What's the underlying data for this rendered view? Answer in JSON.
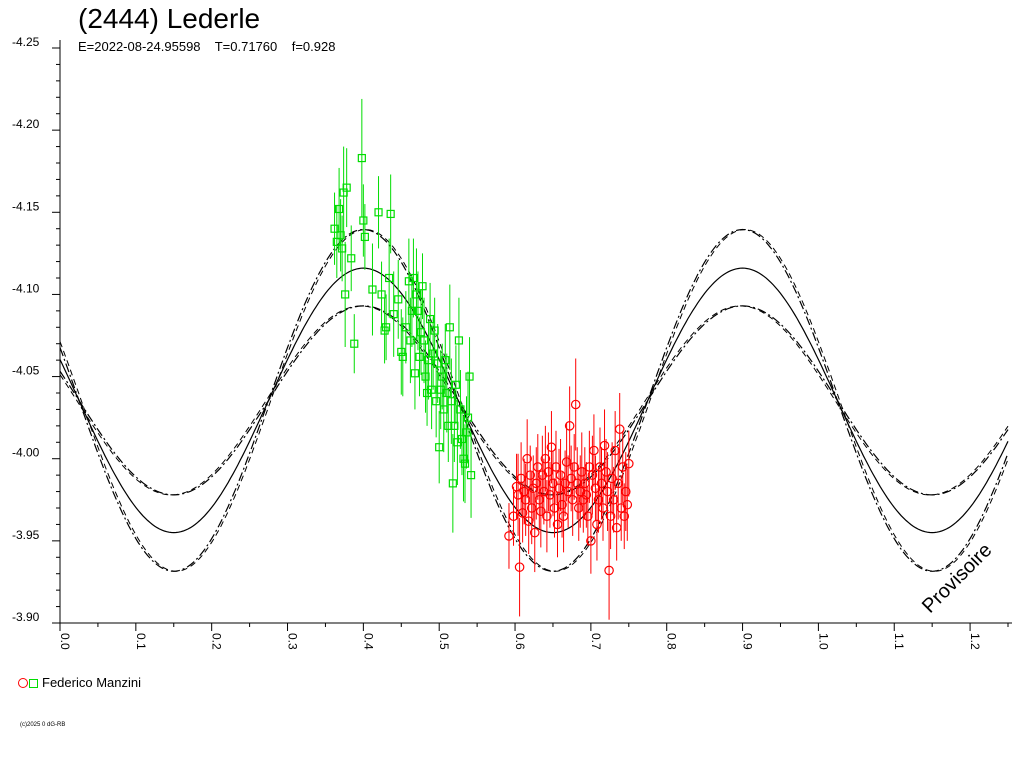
{
  "chart_data": {
    "type": "scatter",
    "title": "(2444) Lederle",
    "subtitle": "E=2022-08-24.95598    T=0.71760    f=0.928",
    "xlabel": "",
    "ylabel": "",
    "xlim": [
      0.0,
      1.25
    ],
    "ylim": [
      -4.25,
      -3.9
    ],
    "y_inverted": true,
    "x_ticks": [
      "0.0",
      "0.1",
      "0.2",
      "0.3",
      "0.4",
      "0.5",
      "0.6",
      "0.7",
      "0.8",
      "0.9",
      "1.0",
      "1.1",
      "1.2"
    ],
    "y_ticks": [
      "-4.25",
      "-4.20",
      "-4.15",
      "-4.10",
      "-4.05",
      "-4.00",
      "-3.95",
      "-3.90"
    ],
    "watermark": "Provisoire",
    "model_curves": {
      "center": -4.0355,
      "amplitude_mid": 0.0805,
      "amplitude_outer": 0.104,
      "amplitude_inner": 0.0575,
      "max_phase": 0.4,
      "period_phase": 0.5
    },
    "series": [
      {
        "name": "Federico Manzini",
        "marker": "square",
        "color": "#00dd00",
        "points": [
          [
            0.362,
            -4.14,
            0.022
          ],
          [
            0.365,
            -4.132,
            0.022
          ],
          [
            0.368,
            -4.152,
            0.025
          ],
          [
            0.37,
            -4.136,
            0.022
          ],
          [
            0.372,
            -4.128,
            0.02
          ],
          [
            0.374,
            -4.162,
            0.028
          ],
          [
            0.376,
            -4.1,
            0.032
          ],
          [
            0.378,
            -4.165,
            0.024
          ],
          [
            0.384,
            -4.122,
            0.02
          ],
          [
            0.388,
            -4.07,
            0.018
          ],
          [
            0.398,
            -4.183,
            0.036
          ],
          [
            0.4,
            -4.145,
            0.022
          ],
          [
            0.402,
            -4.135,
            0.02
          ],
          [
            0.412,
            -4.103,
            0.028
          ],
          [
            0.42,
            -4.15,
            0.022
          ],
          [
            0.424,
            -4.1,
            0.02
          ],
          [
            0.428,
            -4.078,
            0.02
          ],
          [
            0.43,
            -4.08,
            0.02
          ],
          [
            0.434,
            -4.11,
            0.024
          ],
          [
            0.436,
            -4.149,
            0.024
          ],
          [
            0.44,
            -4.088,
            0.026
          ],
          [
            0.446,
            -4.097,
            0.024
          ],
          [
            0.45,
            -4.065,
            0.026
          ],
          [
            0.452,
            -4.062,
            0.024
          ],
          [
            0.456,
            -4.08,
            0.022
          ],
          [
            0.46,
            -4.108,
            0.026
          ],
          [
            0.462,
            -4.072,
            0.026
          ],
          [
            0.464,
            -4.09,
            0.022
          ],
          [
            0.466,
            -4.11,
            0.024
          ],
          [
            0.468,
            -4.052,
            0.022
          ],
          [
            0.47,
            -4.1,
            0.028
          ],
          [
            0.472,
            -4.09,
            0.024
          ],
          [
            0.474,
            -4.062,
            0.024
          ],
          [
            0.476,
            -4.077,
            0.026
          ],
          [
            0.478,
            -4.105,
            0.02
          ],
          [
            0.48,
            -4.072,
            0.026
          ],
          [
            0.482,
            -4.05,
            0.022
          ],
          [
            0.484,
            -4.04,
            0.02
          ],
          [
            0.486,
            -4.06,
            0.024
          ],
          [
            0.488,
            -4.085,
            0.022
          ],
          [
            0.49,
            -4.042,
            0.024
          ],
          [
            0.492,
            -4.064,
            0.022
          ],
          [
            0.494,
            -4.078,
            0.02
          ],
          [
            0.496,
            -4.035,
            0.022
          ],
          [
            0.498,
            -4.058,
            0.024
          ],
          [
            0.5,
            -4.007,
            0.022
          ],
          [
            0.502,
            -4.042,
            0.024
          ],
          [
            0.504,
            -4.05,
            0.02
          ],
          [
            0.506,
            -4.03,
            0.026
          ],
          [
            0.508,
            -4.06,
            0.022
          ],
          [
            0.51,
            -4.04,
            0.024
          ],
          [
            0.512,
            -4.02,
            0.022
          ],
          [
            0.514,
            -4.08,
            0.026
          ],
          [
            0.516,
            -4.035,
            0.026
          ],
          [
            0.518,
            -3.985,
            0.03
          ],
          [
            0.52,
            -4.02,
            0.022
          ],
          [
            0.522,
            -4.045,
            0.024
          ],
          [
            0.524,
            -4.01,
            0.026
          ],
          [
            0.526,
            -4.072,
            0.026
          ],
          [
            0.528,
            -4.03,
            0.024
          ],
          [
            0.53,
            -4.012,
            0.022
          ],
          [
            0.532,
            -4.0,
            0.026
          ],
          [
            0.534,
            -3.997,
            0.024
          ],
          [
            0.536,
            -4.016,
            0.022
          ],
          [
            0.538,
            -4.025,
            0.028
          ],
          [
            0.54,
            -4.05,
            0.024
          ],
          [
            0.542,
            -3.99,
            0.026
          ]
        ]
      },
      {
        "name": "Federico Manzini",
        "marker": "circle",
        "color": "#ff0000",
        "points": [
          [
            0.592,
            -3.953,
            0.02
          ],
          [
            0.598,
            -3.965,
            0.018
          ],
          [
            0.602,
            -3.983,
            0.02
          ],
          [
            0.604,
            -3.978,
            0.025
          ],
          [
            0.606,
            -3.934,
            0.03
          ],
          [
            0.608,
            -3.988,
            0.022
          ],
          [
            0.61,
            -3.967,
            0.018
          ],
          [
            0.612,
            -3.98,
            0.02
          ],
          [
            0.614,
            -3.975,
            0.022
          ],
          [
            0.616,
            -4.0,
            0.024
          ],
          [
            0.618,
            -3.962,
            0.02
          ],
          [
            0.62,
            -3.99,
            0.018
          ],
          [
            0.622,
            -3.97,
            0.022
          ],
          [
            0.624,
            -3.982,
            0.02
          ],
          [
            0.626,
            -3.955,
            0.024
          ],
          [
            0.628,
            -3.985,
            0.022
          ],
          [
            0.63,
            -3.995,
            0.02
          ],
          [
            0.632,
            -3.975,
            0.018
          ],
          [
            0.634,
            -3.968,
            0.022
          ],
          [
            0.636,
            -3.99,
            0.024
          ],
          [
            0.638,
            -3.98,
            0.02
          ],
          [
            0.64,
            -4.0,
            0.02
          ],
          [
            0.642,
            -3.965,
            0.022
          ],
          [
            0.644,
            -3.992,
            0.024
          ],
          [
            0.646,
            -3.978,
            0.02
          ],
          [
            0.648,
            -4.007,
            0.022
          ],
          [
            0.65,
            -3.985,
            0.02
          ],
          [
            0.652,
            -3.97,
            0.018
          ],
          [
            0.654,
            -3.995,
            0.022
          ],
          [
            0.656,
            -3.96,
            0.02
          ],
          [
            0.658,
            -3.982,
            0.024
          ],
          [
            0.66,
            -3.99,
            0.022
          ],
          [
            0.662,
            -3.972,
            0.02
          ],
          [
            0.664,
            -3.965,
            0.022
          ],
          [
            0.666,
            -3.985,
            0.02
          ],
          [
            0.668,
            -3.998,
            0.024
          ],
          [
            0.67,
            -3.98,
            0.022
          ],
          [
            0.672,
            -4.02,
            0.024
          ],
          [
            0.674,
            -3.988,
            0.02
          ],
          [
            0.676,
            -3.975,
            0.022
          ],
          [
            0.678,
            -3.995,
            0.02
          ],
          [
            0.68,
            -4.033,
            0.028
          ],
          [
            0.682,
            -3.985,
            0.022
          ],
          [
            0.684,
            -3.97,
            0.02
          ],
          [
            0.686,
            -3.98,
            0.022
          ],
          [
            0.688,
            -3.992,
            0.024
          ],
          [
            0.69,
            -3.975,
            0.02
          ],
          [
            0.692,
            -3.985,
            0.022
          ],
          [
            0.694,
            -3.978,
            0.02
          ],
          [
            0.696,
            -3.965,
            0.018
          ],
          [
            0.698,
            -3.995,
            0.022
          ],
          [
            0.7,
            -3.95,
            0.02
          ],
          [
            0.702,
            -3.99,
            0.024
          ],
          [
            0.704,
            -4.005,
            0.022
          ],
          [
            0.706,
            -3.982,
            0.02
          ],
          [
            0.708,
            -3.96,
            0.022
          ],
          [
            0.71,
            -3.975,
            0.02
          ],
          [
            0.712,
            -3.995,
            0.024
          ],
          [
            0.714,
            -3.985,
            0.022
          ],
          [
            0.716,
            -3.97,
            0.02
          ],
          [
            0.718,
            -4.008,
            0.022
          ],
          [
            0.72,
            -3.992,
            0.02
          ],
          [
            0.722,
            -3.98,
            0.024
          ],
          [
            0.724,
            -3.932,
            0.03
          ],
          [
            0.726,
            -3.965,
            0.02
          ],
          [
            0.728,
            -3.988,
            0.022
          ],
          [
            0.73,
            -3.975,
            0.02
          ],
          [
            0.732,
            -4.005,
            0.024
          ],
          [
            0.734,
            -3.958,
            0.02
          ],
          [
            0.736,
            -3.985,
            0.022
          ],
          [
            0.738,
            -4.018,
            0.022
          ],
          [
            0.74,
            -3.97,
            0.02
          ],
          [
            0.742,
            -3.995,
            0.022
          ],
          [
            0.744,
            -3.965,
            0.02
          ],
          [
            0.746,
            -3.98,
            0.024
          ],
          [
            0.748,
            -3.972,
            0.022
          ],
          [
            0.75,
            -3.997,
            0.02
          ]
        ]
      }
    ]
  },
  "legend": {
    "label": "Federico Manzini"
  },
  "copyright": "(c)2025 0 dG-RB"
}
